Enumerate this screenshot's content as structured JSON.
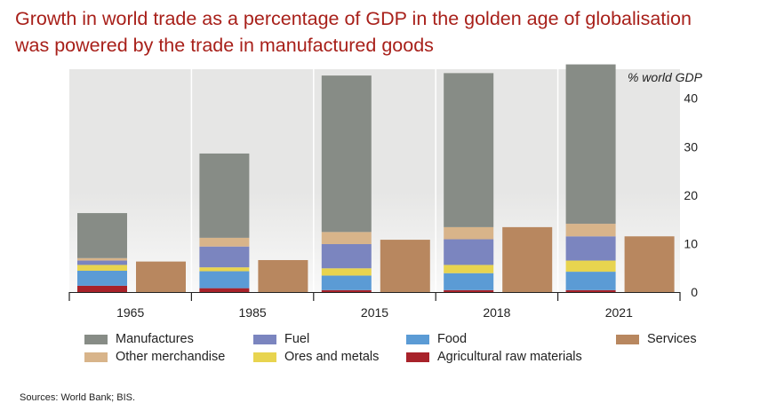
{
  "title": {
    "line1": "Growth in world trade as a percentage of GDP in the golden age of globalisation",
    "line2": "was powered by the trade in manufactured goods"
  },
  "source": "Sources: World Bank; BIS.",
  "chart_data": {
    "type": "bar",
    "subtype": "stacked + side-by-side",
    "unit_label": "% world GDP",
    "categories": [
      "1965",
      "1985",
      "2015",
      "2018",
      "2021"
    ],
    "ylim": [
      0,
      46
    ],
    "yticks": [
      0,
      10,
      20,
      30,
      40
    ],
    "yaxis_side": "right",
    "grid": "vertical separators between categories",
    "legend_position": "bottom",
    "stack_order": [
      "Agricultural raw materials",
      "Food",
      "Ores and metals",
      "Fuel",
      "Other merchandise",
      "Manufactures"
    ],
    "series": [
      {
        "name": "Manufactures",
        "color": "#878c86",
        "stack": "goods",
        "values": [
          9.3,
          17.4,
          32.3,
          31.8,
          32.9
        ]
      },
      {
        "name": "Other merchandise",
        "color": "#d8b48a",
        "stack": "goods",
        "values": [
          0.5,
          1.8,
          2.5,
          2.5,
          2.6
        ]
      },
      {
        "name": "Fuel",
        "color": "#7b85bf",
        "stack": "goods",
        "values": [
          0.9,
          4.3,
          5.0,
          5.3,
          5.0
        ]
      },
      {
        "name": "Ores and metals",
        "color": "#e8d44f",
        "stack": "goods",
        "values": [
          1.2,
          0.8,
          1.5,
          1.7,
          2.3
        ]
      },
      {
        "name": "Food",
        "color": "#5b9bd5",
        "stack": "goods",
        "values": [
          3.1,
          3.5,
          3.0,
          3.5,
          3.8
        ]
      },
      {
        "name": "Agricultural raw materials",
        "color": "#a8222a",
        "stack": "goods",
        "values": [
          1.3,
          0.8,
          0.4,
          0.4,
          0.4
        ]
      },
      {
        "name": "Services",
        "color": "#b8875f",
        "stack": "services",
        "values": [
          6.3,
          6.6,
          10.8,
          13.4,
          11.5
        ]
      }
    ]
  },
  "legend": [
    {
      "label": "Manufactures",
      "color": "#878c86"
    },
    {
      "label": "Fuel",
      "color": "#7b85bf"
    },
    {
      "label": "Food",
      "color": "#5b9bd5"
    },
    {
      "label": "Services",
      "color": "#b8875f"
    },
    {
      "label": "Other merchandise",
      "color": "#d8b48a"
    },
    {
      "label": "Ores and metals",
      "color": "#e8d44f"
    },
    {
      "label": "Agricultural raw materials",
      "color": "#a8222a"
    }
  ],
  "colors": {
    "title": "#a8201a",
    "plot_background": "#e6e6e5",
    "gridline": "#ffffff"
  }
}
